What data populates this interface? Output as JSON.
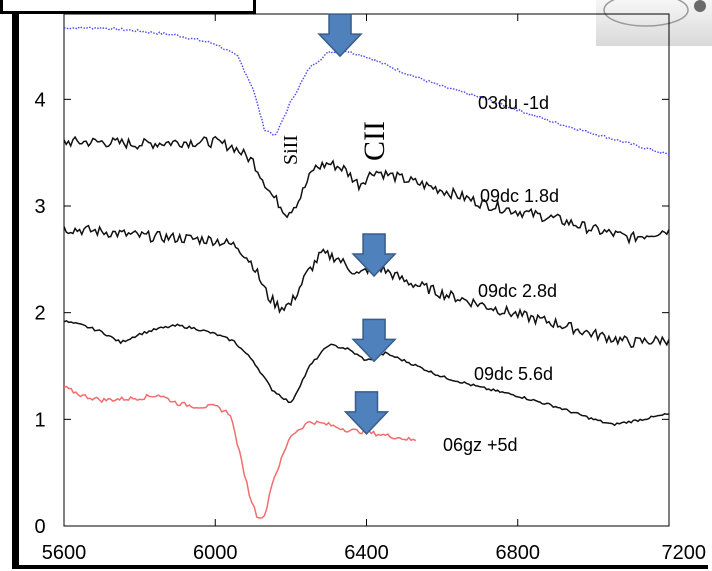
{
  "chart_data": {
    "type": "line",
    "title": "",
    "xlabel": "",
    "ylabel": "",
    "xlim": [
      5600,
      7200
    ],
    "ylim": [
      0,
      4.8
    ],
    "x_ticks": [
      "5600",
      "6000",
      "6400",
      "6800",
      "7200"
    ],
    "y_ticks": [
      "0",
      "1",
      "2",
      "3",
      "4"
    ],
    "grid": false,
    "series": [
      {
        "name": "03du -1d",
        "color": "#4a4af2",
        "dash": "dotted",
        "x": [
          5600,
          5700,
          5800,
          5900,
          6000,
          6060,
          6100,
          6130,
          6160,
          6200,
          6250,
          6300,
          6340,
          6400,
          6500,
          6600,
          6700,
          6800,
          6900,
          7000,
          7100,
          7200
        ],
        "y": [
          4.67,
          4.67,
          4.64,
          4.6,
          4.52,
          4.4,
          4.1,
          3.72,
          3.66,
          3.98,
          4.3,
          4.44,
          4.46,
          4.4,
          4.25,
          4.12,
          4.02,
          3.9,
          3.78,
          3.68,
          3.58,
          3.48
        ]
      },
      {
        "name": "09dc 1.8d",
        "color": "#111111",
        "dash": "solid",
        "x": [
          5600,
          5700,
          5800,
          5900,
          6000,
          6050,
          6100,
          6150,
          6190,
          6220,
          6260,
          6300,
          6340,
          6380,
          6420,
          6500,
          6600,
          6700,
          6800,
          6900,
          7000,
          7100,
          7200
        ],
        "y": [
          3.6,
          3.6,
          3.58,
          3.6,
          3.6,
          3.55,
          3.42,
          3.1,
          2.93,
          3.05,
          3.35,
          3.4,
          3.35,
          3.2,
          3.33,
          3.25,
          3.15,
          3.03,
          2.95,
          2.88,
          2.78,
          2.7,
          2.78
        ]
      },
      {
        "name": "09dc 2.8d",
        "color": "#111111",
        "dash": "solid",
        "x": [
          5600,
          5700,
          5800,
          5900,
          6000,
          6060,
          6100,
          6140,
          6170,
          6200,
          6240,
          6280,
          6320,
          6380,
          6420,
          6500,
          6600,
          6700,
          6800,
          6900,
          7000,
          7100,
          7200
        ],
        "y": [
          2.79,
          2.76,
          2.72,
          2.7,
          2.68,
          2.62,
          2.45,
          2.15,
          2.05,
          2.08,
          2.35,
          2.55,
          2.52,
          2.35,
          2.45,
          2.3,
          2.18,
          2.08,
          1.98,
          1.9,
          1.8,
          1.72,
          1.75
        ]
      },
      {
        "name": "09dc 5.6d",
        "color": "#111111",
        "dash": "solid",
        "x": [
          5600,
          5650,
          5700,
          5750,
          5800,
          5850,
          5900,
          5950,
          6000,
          6050,
          6100,
          6150,
          6200,
          6250,
          6300,
          6350,
          6400,
          6450,
          6500,
          6600,
          6700,
          6800,
          6900,
          7000,
          7050,
          7100,
          7200
        ],
        "y": [
          1.92,
          1.88,
          1.82,
          1.72,
          1.8,
          1.85,
          1.88,
          1.85,
          1.8,
          1.73,
          1.55,
          1.28,
          1.15,
          1.5,
          1.7,
          1.66,
          1.55,
          1.62,
          1.55,
          1.4,
          1.3,
          1.22,
          1.12,
          1.0,
          0.95,
          0.98,
          1.05
        ]
      },
      {
        "name": "06gz +5d",
        "color": "#f26d6d",
        "dash": "solid",
        "x": [
          5600,
          5650,
          5700,
          5800,
          5850,
          5900,
          5950,
          6000,
          6040,
          6070,
          6090,
          6110,
          6130,
          6150,
          6200,
          6250,
          6300,
          6350,
          6400,
          6450,
          6500,
          6530
        ],
        "y": [
          1.3,
          1.22,
          1.18,
          1.2,
          1.23,
          1.15,
          1.12,
          1.12,
          1.05,
          0.6,
          0.3,
          0.1,
          0.08,
          0.4,
          0.85,
          0.98,
          0.95,
          0.9,
          0.88,
          0.85,
          0.82,
          0.8
        ]
      }
    ],
    "annotations": [
      {
        "text": "SiII",
        "x": 6205,
        "y": 3.8,
        "rotation": -90
      },
      {
        "text": "CII",
        "x": 6385,
        "y": 3.82,
        "rotation": -90
      }
    ],
    "arrows": [
      {
        "x": 6330,
        "y": 4.78
      },
      {
        "x": 6420,
        "y": 2.7
      },
      {
        "x": 6420,
        "y": 1.9
      },
      {
        "x": 6400,
        "y": 1.22
      }
    ],
    "arrow_color": "#4f81bd"
  }
}
